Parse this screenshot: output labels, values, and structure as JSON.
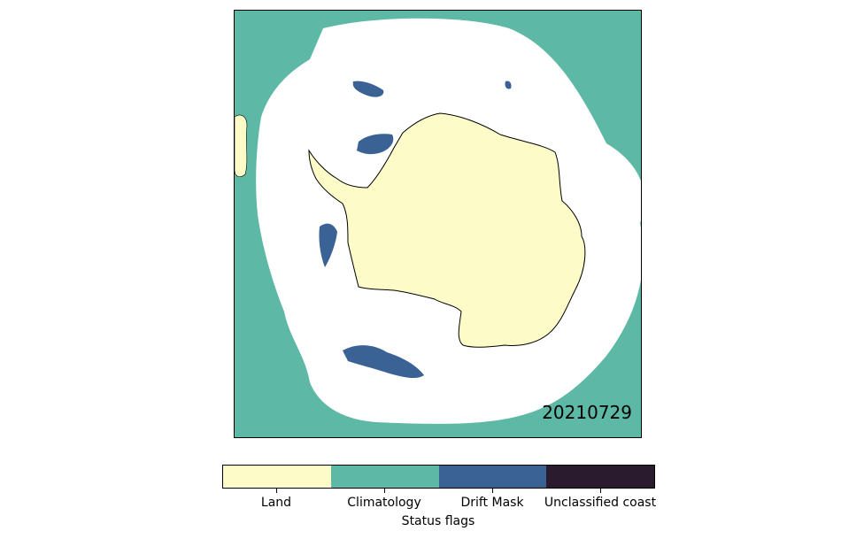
{
  "map": {
    "date": "20210729",
    "colors": {
      "land": "#fdfcc8",
      "climatology": "#5db9a5",
      "drift_mask": "#3b6295",
      "unclassified_coast": "#2a1c2e",
      "sea_ice": "#ffffff",
      "coastline": "#000000"
    }
  },
  "colorbar": {
    "title": "Status flags",
    "labels": [
      "Land",
      "Climatology",
      "Drift Mask",
      "Unclassified coast"
    ],
    "colors": [
      "#fdfcc8",
      "#5db9a5",
      "#3b6295",
      "#2a1c2e"
    ]
  }
}
